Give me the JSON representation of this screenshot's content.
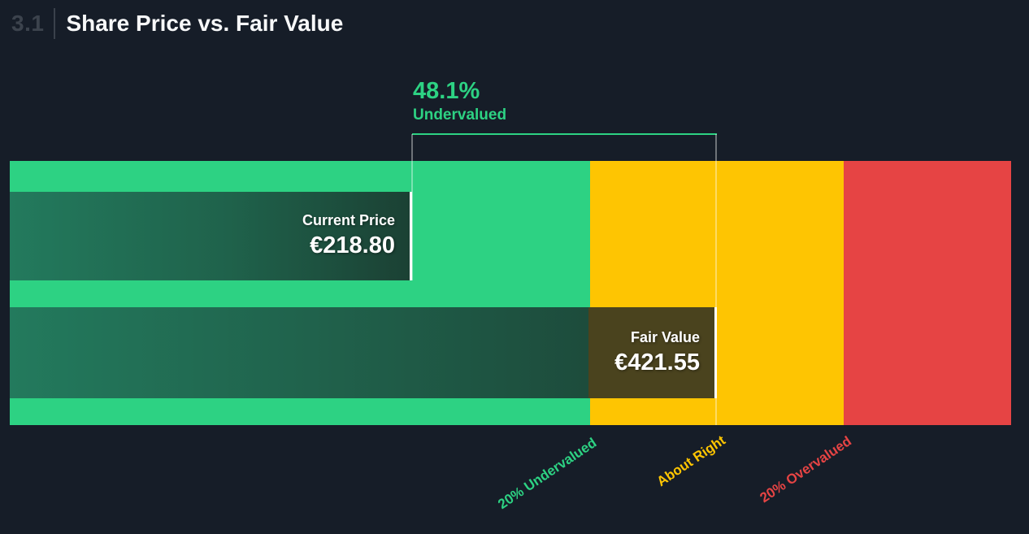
{
  "header": {
    "section_number": "3.1",
    "title": "Share Price vs. Fair Value"
  },
  "annotation": {
    "percent": "48.1%",
    "label": "Undervalued"
  },
  "bars": {
    "current": {
      "label": "Current Price",
      "value": "€218.80"
    },
    "fair": {
      "label": "Fair Value",
      "value": "€421.55"
    }
  },
  "axis_labels": [
    "20% Undervalued",
    "About Right",
    "20% Overvalued"
  ],
  "colors": {
    "background": "#161d28",
    "undervalued_green": "#2dd283",
    "about_right_yellow": "#fec502",
    "overvalued_red": "#e64444",
    "bar_gradient_start": "#237a5d",
    "bar_gradient_end": "#1b4134",
    "fair_value_olive": "#4a431e",
    "annotation_green": "#2dd283",
    "title_white": "#f7f8f9",
    "section_number_gray": "#3c434d"
  },
  "chart_data": {
    "type": "bar",
    "title": "Share Price vs. Fair Value",
    "currency": "EUR",
    "series": [
      {
        "name": "Current Price",
        "value": 218.8
      },
      {
        "name": "Fair Value",
        "value": 421.55
      }
    ],
    "discount_percent": 48.1,
    "valuation_status": "Undervalued",
    "zones": [
      {
        "label": "20% Undervalued",
        "color": "#2dd283"
      },
      {
        "label": "About Right",
        "color": "#fec502"
      },
      {
        "label": "20% Overvalued",
        "color": "#e64444"
      }
    ],
    "legend_position": "bottom-rotated",
    "grid": false
  }
}
